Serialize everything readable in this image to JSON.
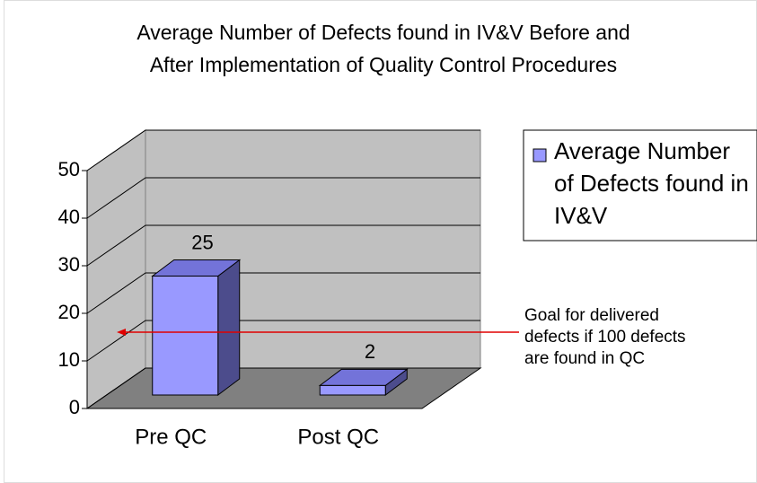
{
  "chart_data": {
    "type": "bar3d",
    "title": "Average Number of Defects found in IV&V Before and\nAfter Implementation of Quality Control Procedures",
    "categories": [
      "Pre QC",
      "Post QC"
    ],
    "series": [
      {
        "name": "Average Number of Defects found in IV&V",
        "color": "#9999ff",
        "values": [
          25,
          2
        ]
      }
    ],
    "ylim": [
      0,
      50
    ],
    "yticks": [
      0,
      10,
      20,
      30,
      40,
      50
    ],
    "grid": true,
    "legend": "right",
    "annotation": "Goal for delivered defects if 100 defects are found in QC"
  }
}
